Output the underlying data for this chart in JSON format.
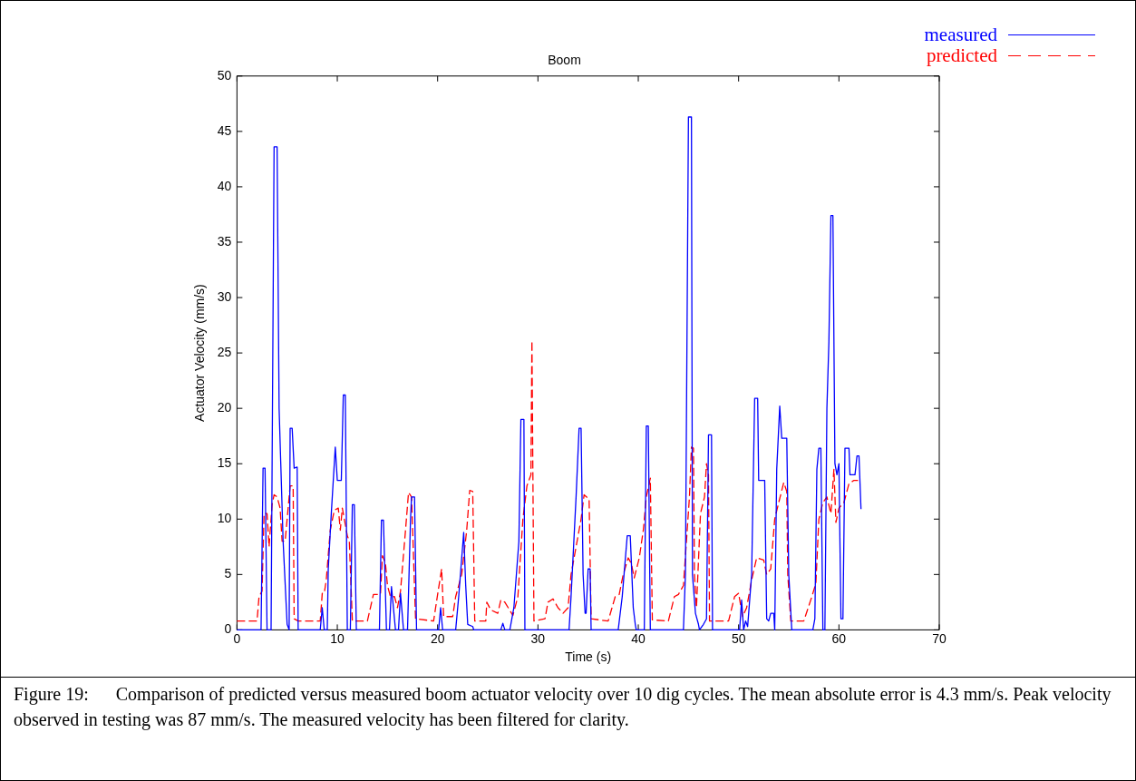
{
  "chart_data": {
    "type": "line",
    "title": "Boom",
    "xlabel": "Time (s)",
    "ylabel": "Actuator Velocity (mm/s)",
    "xlim": [
      0,
      70
    ],
    "ylim": [
      0,
      50
    ],
    "xticks": [
      0,
      10,
      20,
      30,
      40,
      50,
      60,
      70
    ],
    "yticks": [
      0,
      5,
      10,
      15,
      20,
      25,
      30,
      35,
      40,
      45,
      50
    ],
    "grid": false,
    "legend": "top right",
    "marker": "none",
    "annotations": [
      "Figure 19:      Comparison of predicted versus measured boom actuator velocity over 10 dig cycles. The mean absolute error is 4.3 mm/s. Peak velocity observed in testing was 87 mm/s. The measured velocity has been filtered for clarity."
    ],
    "series": [
      {
        "name": "measured",
        "color": "#0000ff",
        "line_style": "solid",
        "x": [
          0,
          2.4,
          2.6,
          2.8,
          3.0,
          3.4,
          3.7,
          4.0,
          4.2,
          4.6,
          5.0,
          5.2,
          5.3,
          5.5,
          5.7,
          6.0,
          6.1,
          8.3,
          8.5,
          8.7,
          9.0,
          9.1,
          9.4,
          9.8,
          10.0,
          10.4,
          10.6,
          10.8,
          11.0,
          11.3,
          11.5,
          11.7,
          11.9,
          14.2,
          14.4,
          14.6,
          14.9,
          15.2,
          15.4,
          15.8,
          16.1,
          16.3,
          16.6,
          17.0,
          17.3,
          17.4,
          17.7,
          17.9,
          20.1,
          20.3,
          20.5,
          21.8,
          22.1,
          22.6,
          22.8,
          23.0,
          23.5,
          23.6,
          26.3,
          26.5,
          26.7,
          27.2,
          27.6,
          28.1,
          28.3,
          28.6,
          28.7,
          33.1,
          33.3,
          33.8,
          34.1,
          34.3,
          34.5,
          34.7,
          34.8,
          35.0,
          35.2,
          35.3,
          38.0,
          38.4,
          38.9,
          39.2,
          39.5,
          39.7,
          39.8,
          40.6,
          40.8,
          41.0,
          41.2,
          44.5,
          44.7,
          45.0,
          45.3,
          45.4,
          45.7,
          46.0,
          46.1,
          46.5,
          46.8,
          47.0,
          47.3,
          47.4,
          50.1,
          50.3,
          50.5,
          50.7,
          50.9,
          51.3,
          51.6,
          51.9,
          52.0,
          52.6,
          52.8,
          53.0,
          53.2,
          53.5,
          53.6,
          53.8,
          54.1,
          54.3,
          54.8,
          55.0,
          55.3,
          57.4,
          57.6,
          57.8,
          58.0,
          58.2,
          58.4,
          58.6,
          58.8,
          59.0,
          59.2,
          59.4,
          59.6,
          59.8,
          60.0,
          60.2,
          60.4,
          60.6,
          61.0,
          61.1,
          61.6,
          61.8,
          62.0,
          62.2
        ],
        "values": [
          0,
          0,
          14.6,
          14.6,
          0,
          0,
          43.6,
          43.6,
          20,
          8,
          0.5,
          0,
          18.2,
          18.2,
          14.6,
          14.7,
          0,
          0,
          2,
          0,
          0,
          5.5,
          10.5,
          16.5,
          13.5,
          13.5,
          21.2,
          21.2,
          0,
          0,
          11.3,
          11.3,
          0,
          0,
          9.9,
          9.9,
          0,
          0,
          3.9,
          0,
          0,
          3.3,
          0,
          0,
          10,
          12,
          12,
          0,
          0,
          2,
          0,
          0,
          3,
          8.8,
          4,
          0.5,
          0.3,
          0,
          0,
          0.6,
          0,
          0,
          2,
          8,
          19,
          19,
          0,
          0,
          3,
          12,
          18.2,
          18.2,
          5,
          1.5,
          1.5,
          5.5,
          5.5,
          0,
          0,
          3,
          8.5,
          8.5,
          2,
          0.5,
          0,
          0,
          18.4,
          18.4,
          0,
          0,
          5,
          46.3,
          46.3,
          5,
          1.5,
          0.5,
          0,
          0.5,
          1,
          17.6,
          17.6,
          0,
          0,
          2.7,
          0,
          0.8,
          0.3,
          5,
          20.9,
          20.9,
          13.5,
          13.5,
          1,
          0.8,
          1.5,
          1.5,
          0,
          14.5,
          20.2,
          17.3,
          17.3,
          5,
          0,
          0,
          1,
          14.5,
          16.4,
          16.4,
          0,
          0,
          20,
          26,
          37.4,
          37.4,
          15,
          14,
          15,
          1,
          1,
          16.4,
          16.4,
          14,
          14,
          15.7,
          15.7,
          10.9
        ]
      },
      {
        "name": "predicted",
        "color": "#ff0000",
        "line_style": "dashed",
        "x": [
          0,
          2.0,
          2.2,
          2.5,
          2.7,
          3.0,
          3.2,
          3.5,
          3.7,
          4.0,
          4.3,
          4.5,
          4.8,
          5.3,
          5.6,
          5.7,
          6.1,
          8.3,
          8.5,
          8.7,
          8.9,
          9.3,
          9.7,
          10.1,
          10.3,
          10.5,
          11.0,
          11.2,
          11.5,
          13.0,
          13.6,
          14.3,
          14.5,
          14.8,
          15.0,
          15.3,
          15.7,
          16.0,
          16.3,
          16.8,
          17.1,
          17.4,
          17.8,
          19.6,
          20.0,
          20.4,
          20.6,
          21.5,
          21.8,
          22.4,
          22.9,
          23.2,
          23.5,
          23.7,
          24.8,
          24.9,
          25.3,
          26.0,
          26.3,
          26.7,
          27.5,
          28.0,
          28.5,
          28.9,
          29.3,
          29.4,
          29.6,
          30.7,
          31.0,
          31.5,
          32.0,
          32.5,
          33.0,
          33.3,
          33.8,
          34.3,
          34.6,
          35.1,
          35.3,
          37.0,
          37.7,
          38.1,
          38.5,
          39.0,
          39.3,
          39.6,
          40.1,
          40.5,
          40.8,
          41.2,
          41.4,
          43.0,
          43.6,
          44.0,
          44.5,
          45.1,
          45.3,
          45.5,
          45.6,
          45.8,
          46.2,
          46.6,
          46.8,
          47.0,
          47.1,
          49.0,
          49.6,
          50.0,
          50.4,
          50.8,
          51.3,
          51.8,
          52.5,
          52.8,
          53.2,
          53.6,
          54.0,
          54.5,
          54.8,
          54.9,
          55.2,
          56.5,
          57.3,
          57.7,
          58.0,
          58.4,
          58.8,
          59.2,
          59.5,
          59.7,
          60.0,
          60.5,
          61.0,
          61.5,
          61.9
        ],
        "values": [
          0.8,
          0.8,
          3,
          3.5,
          10.5,
          10.5,
          7.5,
          11.3,
          12.2,
          12,
          11,
          8,
          8,
          13,
          13,
          1,
          0.8,
          0.8,
          3.3,
          3.3,
          4.5,
          9,
          10.8,
          11,
          9,
          11,
          8.5,
          8,
          0.8,
          0.8,
          3.2,
          3.2,
          6.7,
          6,
          4,
          3,
          3,
          2,
          3.5,
          9,
          12.4,
          12,
          1,
          0.8,
          3.2,
          5.5,
          1.2,
          1.2,
          3,
          5,
          9,
          12.6,
          12.5,
          0.8,
          0.8,
          2.5,
          1.8,
          1.5,
          2.7,
          2.5,
          1.3,
          3,
          10,
          13,
          14,
          26.1,
          0.8,
          1,
          2.5,
          2.8,
          2,
          1.5,
          2,
          5,
          7.5,
          10,
          12.2,
          11.8,
          1,
          0.8,
          3,
          3.2,
          5,
          6.5,
          6,
          4.7,
          6.5,
          9,
          12,
          13.7,
          0.9,
          0.8,
          3,
          3.2,
          4,
          12,
          16.5,
          16.4,
          5,
          2,
          10.5,
          12,
          15,
          14,
          0.8,
          0.8,
          3,
          3.3,
          1.2,
          2,
          4.5,
          6.5,
          6.3,
          5,
          5.5,
          10,
          11.5,
          13.3,
          12.5,
          5,
          0.8,
          0.8,
          3,
          4.2,
          10,
          11.5,
          12,
          10.5,
          14.5,
          9.7,
          11,
          11.5,
          13.2,
          13.5,
          13.5
        ]
      }
    ]
  }
}
